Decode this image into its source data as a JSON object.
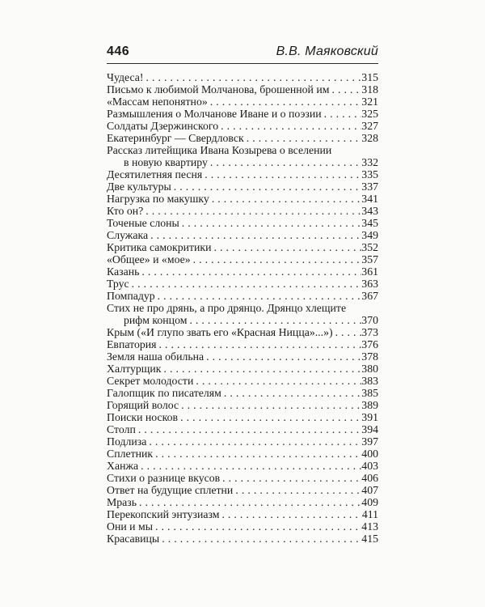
{
  "header": {
    "page_number": "446",
    "running_title": "В.В. Маяковский"
  },
  "toc": {
    "entries": [
      {
        "text": "Чудеса!",
        "page": "315"
      },
      {
        "text": "Письмо к любимой Молчанова, брошенной им",
        "page": "318"
      },
      {
        "text": "«Массам непонятно»",
        "page": "321"
      },
      {
        "text": "Размышления о Молчанове Иване и о поэзии",
        "page": "325"
      },
      {
        "text": "Солдаты Дзержинского",
        "page": "327"
      },
      {
        "text": "Екатеринбург — Свердловск",
        "page": "328"
      },
      {
        "text": "Рассказ литейщика Ивана Козырева о вселении",
        "page": ""
      },
      {
        "text": "в новую квартиру",
        "page": "332",
        "indent": true
      },
      {
        "text": "Десятилетняя песня",
        "page": "335"
      },
      {
        "text": "Две культуры",
        "page": "337"
      },
      {
        "text": "Нагрузка по макушку",
        "page": "341"
      },
      {
        "text": "Кто он?",
        "page": "343"
      },
      {
        "text": "Точеные слоны",
        "page": "345"
      },
      {
        "text": "Служака",
        "page": "349"
      },
      {
        "text": "Критика самокритики",
        "page": "352"
      },
      {
        "text": "«Общее» и «мое»",
        "page": "357"
      },
      {
        "text": "Казань",
        "page": "361"
      },
      {
        "text": "Трус",
        "page": "363"
      },
      {
        "text": "Помпадур",
        "page": "367"
      },
      {
        "text": "Стих не про дрянь, а про дрянцо. Дрянцо хлещите",
        "page": ""
      },
      {
        "text": "рифм концом",
        "page": "370",
        "indent": true
      },
      {
        "text": "Крым («И глупо звать его «Красная Ницца»...»)",
        "page": "373"
      },
      {
        "text": "Евпатория",
        "page": "376"
      },
      {
        "text": "Земля наша обильна",
        "page": "378"
      },
      {
        "text": "Халтурщик",
        "page": "380"
      },
      {
        "text": "Секрет молодости",
        "page": "383"
      },
      {
        "text": "Галопщик по писателям",
        "page": "385"
      },
      {
        "text": "Горящий волос",
        "page": "389"
      },
      {
        "text": "Поиски носков",
        "page": "391"
      },
      {
        "text": "Столп",
        "page": "394"
      },
      {
        "text": "Подлиза",
        "page": "397"
      },
      {
        "text": "Сплетник",
        "page": "400"
      },
      {
        "text": "Ханжа",
        "page": "403"
      },
      {
        "text": "Стихи о разнице вкусов",
        "page": "406"
      },
      {
        "text": "Ответ на будущие сплетни",
        "page": "407"
      },
      {
        "text": "Мразь",
        "page": "409"
      },
      {
        "text": "Перекопский энтузиазм",
        "page": "411"
      },
      {
        "text": "Они и мы",
        "page": "413"
      },
      {
        "text": "Красавицы",
        "page": "415"
      }
    ]
  },
  "colors": {
    "text": "#1b1b1b",
    "background": "#fbfbf9",
    "rule": "#2a2a2a"
  }
}
